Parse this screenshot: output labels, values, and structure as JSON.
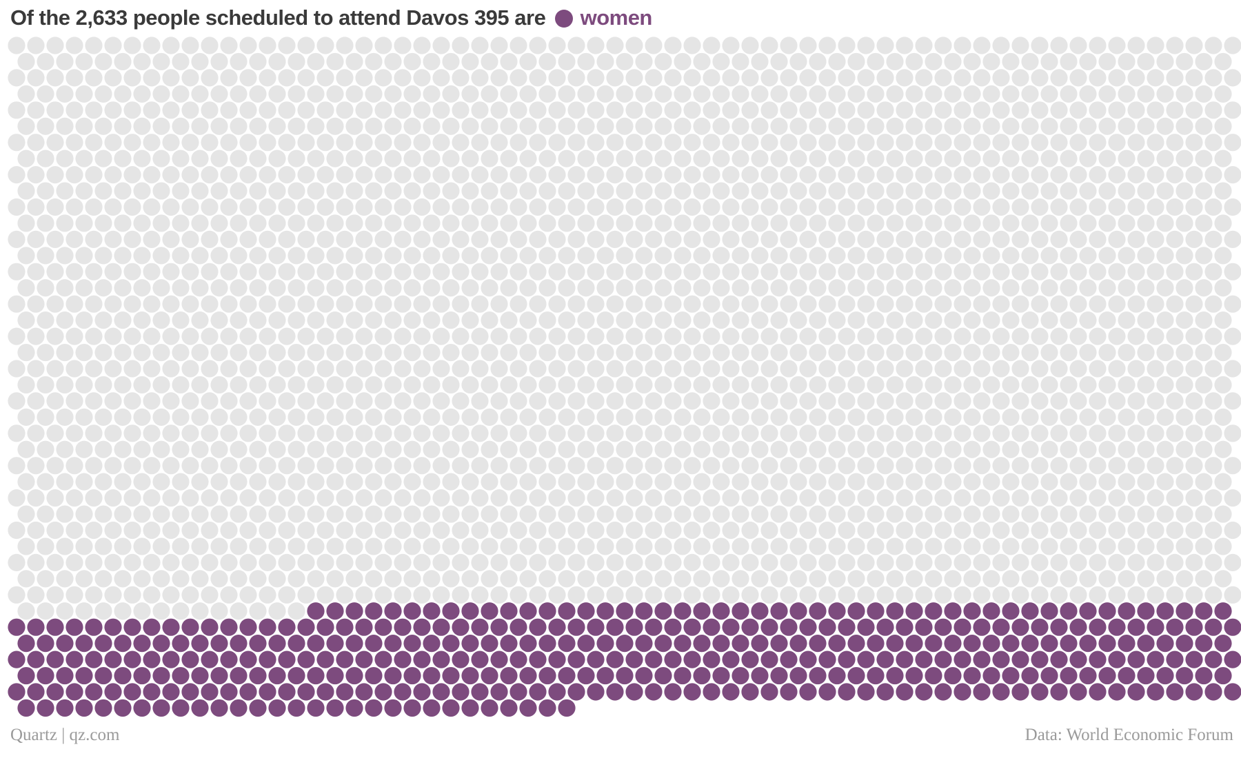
{
  "header": {
    "title": "Of the 2,633 people scheduled to attend Davos 395 are",
    "highlight_label": "women"
  },
  "footer": {
    "source_credit": "Quartz | qz.com",
    "data_source": "Data: World Economic Forum"
  },
  "colors": {
    "highlight": "#7d4b7e",
    "base": "#e5e5e5",
    "title": "#3a3a3a",
    "footer": "#9a9a9a"
  },
  "chart_data": {
    "type": "unit-dot",
    "title": "Of the 2,633 people scheduled to attend Davos 395 are women",
    "total": 2633,
    "highlighted": 395,
    "highlighted_label": "women",
    "other": 2238,
    "legend_placement": "inline in title",
    "grid": false
  }
}
